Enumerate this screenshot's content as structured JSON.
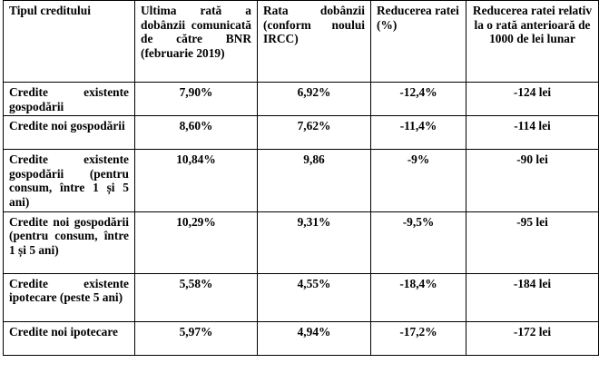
{
  "table": {
    "headers": [
      "Tipul creditului",
      "Ultima rată a dobânzii comunicată de către BNR (februarie 2019)",
      "Rata dobânzii (conform noului IRCC)",
      "Reducerea ratei (%)",
      "Reducerea ratei relativ la o rată anterioară de 1000 de lei lunar"
    ],
    "rows": [
      {
        "type": "Credite existente gospodării",
        "last_rate": "7,90%",
        "new_rate": "6,92%",
        "reduction_pct": "-12,4%",
        "reduction_lei": "-124 lei"
      },
      {
        "type": "Credite noi gospodării",
        "last_rate": "8,60%",
        "new_rate": "7,62%",
        "reduction_pct": "-11,4%",
        "reduction_lei": "-114 lei"
      },
      {
        "type": "Credite existente gospodării (pentru consum, între 1 și 5 ani)",
        "last_rate": "10,84%",
        "new_rate": "9,86",
        "reduction_pct": "-9%",
        "reduction_lei": "-90 lei"
      },
      {
        "type": "Credite noi gospodării (pentru consum, între 1 și 5 ani)",
        "last_rate": "10,29%",
        "new_rate": "9,31%",
        "reduction_pct": "-9,5%",
        "reduction_lei": "-95 lei"
      },
      {
        "type": "Credite existente ipotecare (peste 5 ani)",
        "last_rate": "5,58%",
        "new_rate": "4,55%",
        "reduction_pct": "-18,4%",
        "reduction_lei": "-184 lei"
      },
      {
        "type": "Credite noi ipotecare",
        "last_rate": "5,97%",
        "new_rate": "4,94%",
        "reduction_pct": "-17,2%",
        "reduction_lei": "-172 lei"
      }
    ]
  }
}
